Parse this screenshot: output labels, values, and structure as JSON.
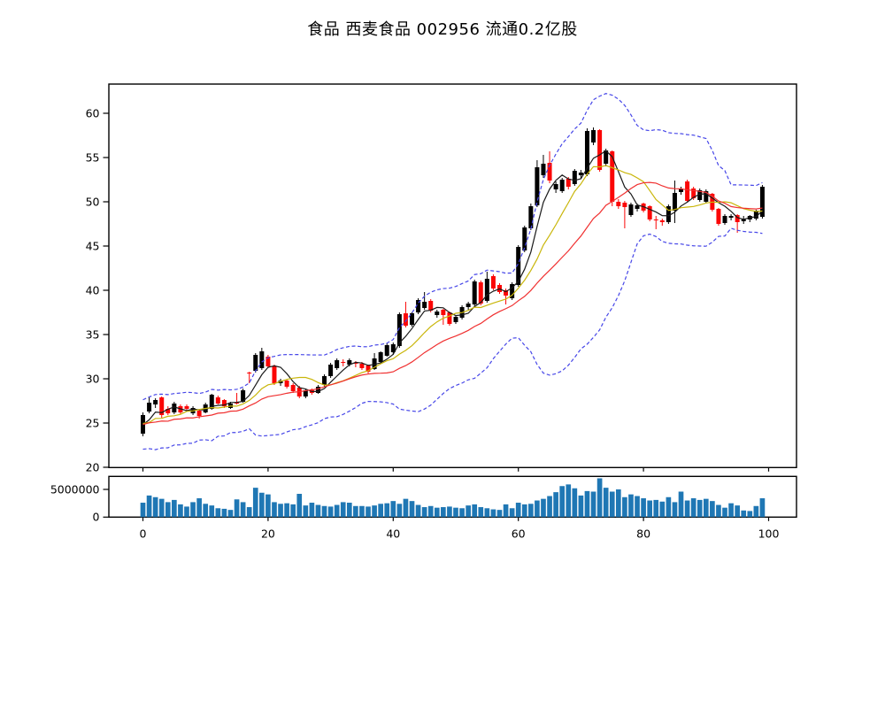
{
  "title": "食品 西麦食品 002956 流通0.2亿股",
  "chart_data": [
    {
      "type": "candlestick",
      "title": "食品 西麦食品 002956 流通0.2亿股",
      "xlabel": "",
      "ylabel": "",
      "xlim": [
        -5.4,
        104.5
      ],
      "ylim": [
        20,
        63.3
      ],
      "yticks": [
        20,
        25,
        30,
        35,
        40,
        45,
        50,
        55,
        60
      ],
      "xticks": [
        0,
        20,
        40,
        60,
        80,
        100
      ],
      "grid": false,
      "colors": {
        "up": "#000000",
        "down": "#fb0606",
        "ma_fast": "#1a1a1a",
        "ma_mid": "#c9b60a",
        "ma_slow": "#f03030",
        "band": "#4646e8"
      },
      "overlays": [
        {
          "name": "ma5",
          "type": "sma",
          "window": 5,
          "style": "solid",
          "color": "#1a1a1a"
        },
        {
          "name": "ma10",
          "type": "sma",
          "window": 10,
          "style": "solid",
          "color": "#c9b60a"
        },
        {
          "name": "ma20",
          "type": "sma",
          "window": 20,
          "style": "solid",
          "color": "#f03030"
        },
        {
          "name": "boll-upper",
          "type": "bollinger_upper",
          "window": 20,
          "k": 2,
          "style": "dashed",
          "color": "#4646e8"
        },
        {
          "name": "boll-lower",
          "type": "bollinger_lower",
          "window": 20,
          "k": 2,
          "style": "dashed",
          "color": "#4646e8"
        }
      ],
      "warmup_closes": [
        22.5,
        23.5,
        26.0,
        23.5,
        26.5,
        22.8,
        25.5,
        24.0,
        27.0,
        23.2,
        25.2,
        26.2,
        23.0,
        25.8,
        23.8,
        26.6,
        24.6,
        23.2,
        26.2,
        24.2
      ],
      "ohlc": [
        [
          23.8,
          26.2,
          23.5,
          25.9
        ],
        [
          26.3,
          27.9,
          26.1,
          27.3
        ],
        [
          27.1,
          27.8,
          26.7,
          27.6
        ],
        [
          27.9,
          28.0,
          25.6,
          25.9
        ],
        [
          26.6,
          26.9,
          25.9,
          26.1
        ],
        [
          26.2,
          27.4,
          26.0,
          27.2
        ],
        [
          26.9,
          27.1,
          26.0,
          26.2
        ],
        [
          26.9,
          27.1,
          26.3,
          26.6
        ],
        [
          26.1,
          26.9,
          25.9,
          26.7
        ],
        [
          26.4,
          26.6,
          25.5,
          25.8
        ],
        [
          26.2,
          27.3,
          26.1,
          27.1
        ],
        [
          26.6,
          28.3,
          26.5,
          28.2
        ],
        [
          27.9,
          28.1,
          27.1,
          27.2
        ],
        [
          27.6,
          27.7,
          26.7,
          26.9
        ],
        [
          26.7,
          27.4,
          26.6,
          27.2
        ],
        [
          27.3,
          28.4,
          27.1,
          27.2
        ],
        [
          27.4,
          28.9,
          27.3,
          28.7
        ],
        [
          30.7,
          30.8,
          29.5,
          30.6
        ],
        [
          30.9,
          32.9,
          30.7,
          32.7
        ],
        [
          31.2,
          33.5,
          31.0,
          33.1
        ],
        [
          32.5,
          32.7,
          31.2,
          31.4
        ],
        [
          31.4,
          31.6,
          29.3,
          29.5
        ],
        [
          29.5,
          30.0,
          29.2,
          29.8
        ],
        [
          29.8,
          29.9,
          28.9,
          29.1
        ],
        [
          29.3,
          29.5,
          28.4,
          28.6
        ],
        [
          29.0,
          29.2,
          27.8,
          28.0
        ],
        [
          28.0,
          28.9,
          27.8,
          28.7
        ],
        [
          28.8,
          28.9,
          28.2,
          28.4
        ],
        [
          28.4,
          29.3,
          28.3,
          29.1
        ],
        [
          29.3,
          30.5,
          29.1,
          30.3
        ],
        [
          30.3,
          31.8,
          30.1,
          31.6
        ],
        [
          31.2,
          32.3,
          31.0,
          32.1
        ],
        [
          31.9,
          32.2,
          31.4,
          31.8
        ],
        [
          31.6,
          32.3,
          31.4,
          32.1
        ],
        [
          31.8,
          32.0,
          31.3,
          31.7
        ],
        [
          31.7,
          31.9,
          31.0,
          31.2
        ],
        [
          31.5,
          31.6,
          30.6,
          30.8
        ],
        [
          31.1,
          32.9,
          31.0,
          32.3
        ],
        [
          31.9,
          33.1,
          31.7,
          33.0
        ],
        [
          32.6,
          34.0,
          32.5,
          33.8
        ],
        [
          33.0,
          34.1,
          32.7,
          33.9
        ],
        [
          33.7,
          37.5,
          33.5,
          37.3
        ],
        [
          37.4,
          38.7,
          35.8,
          36.0
        ],
        [
          36.1,
          37.5,
          35.9,
          37.4
        ],
        [
          37.5,
          39.1,
          37.3,
          38.9
        ],
        [
          38.0,
          39.8,
          37.8,
          38.7
        ],
        [
          38.8,
          39.0,
          37.5,
          37.7
        ],
        [
          37.2,
          37.8,
          36.9,
          37.6
        ],
        [
          37.8,
          37.9,
          36.1,
          37.2
        ],
        [
          37.5,
          37.6,
          36.0,
          36.2
        ],
        [
          36.4,
          37.1,
          36.2,
          37.0
        ],
        [
          36.9,
          38.3,
          36.7,
          38.1
        ],
        [
          38.1,
          38.7,
          37.8,
          38.5
        ],
        [
          38.4,
          41.2,
          38.2,
          41.0
        ],
        [
          40.9,
          41.1,
          38.3,
          38.5
        ],
        [
          38.8,
          42.1,
          38.6,
          41.3
        ],
        [
          41.6,
          41.8,
          40.0,
          40.2
        ],
        [
          40.6,
          40.8,
          39.6,
          39.8
        ],
        [
          40.0,
          40.2,
          38.4,
          39.4
        ],
        [
          39.1,
          40.9,
          38.9,
          40.7
        ],
        [
          40.6,
          45.1,
          40.4,
          44.9
        ],
        [
          44.5,
          47.3,
          44.3,
          47.1
        ],
        [
          47.0,
          49.8,
          46.8,
          49.5
        ],
        [
          49.6,
          54.7,
          49.4,
          53.9
        ],
        [
          53.0,
          55.3,
          52.7,
          54.3
        ],
        [
          54.4,
          55.7,
          52.1,
          52.4
        ],
        [
          51.4,
          52.3,
          51.0,
          52.0
        ],
        [
          51.2,
          52.7,
          51.0,
          52.5
        ],
        [
          52.6,
          52.8,
          51.4,
          51.7
        ],
        [
          52.0,
          53.7,
          51.8,
          53.5
        ],
        [
          53.0,
          53.6,
          52.6,
          53.3
        ],
        [
          53.1,
          58.3,
          52.9,
          58.0
        ],
        [
          56.7,
          58.4,
          56.4,
          58.1
        ],
        [
          58.1,
          58.2,
          53.4,
          53.6
        ],
        [
          54.3,
          56.0,
          54.0,
          55.8
        ],
        [
          55.7,
          55.8,
          49.5,
          50.0
        ],
        [
          50.0,
          50.3,
          49.2,
          49.5
        ],
        [
          49.9,
          50.1,
          47.0,
          49.4
        ],
        [
          48.5,
          49.9,
          48.3,
          49.7
        ],
        [
          49.2,
          49.8,
          48.9,
          49.6
        ],
        [
          49.8,
          49.9,
          48.8,
          49.0
        ],
        [
          49.5,
          49.6,
          47.8,
          48.0
        ],
        [
          48.0,
          48.4,
          46.9,
          47.9
        ],
        [
          47.9,
          48.1,
          47.3,
          47.7
        ],
        [
          47.7,
          49.7,
          47.5,
          49.5
        ],
        [
          49.0,
          52.4,
          47.6,
          51.0
        ],
        [
          51.1,
          51.7,
          50.8,
          51.5
        ],
        [
          52.3,
          52.5,
          49.9,
          50.1
        ],
        [
          51.5,
          51.7,
          50.2,
          50.4
        ],
        [
          50.2,
          51.5,
          50.0,
          51.3
        ],
        [
          50.0,
          51.4,
          49.8,
          51.2
        ],
        [
          50.9,
          51.0,
          48.9,
          49.1
        ],
        [
          49.2,
          49.3,
          47.3,
          47.5
        ],
        [
          47.6,
          48.6,
          47.4,
          48.4
        ],
        [
          48.2,
          48.6,
          47.9,
          48.4
        ],
        [
          48.5,
          48.6,
          46.5,
          47.7
        ],
        [
          47.8,
          48.4,
          47.5,
          48.1
        ],
        [
          48.0,
          48.5,
          47.7,
          48.4
        ],
        [
          48.1,
          49.1,
          47.9,
          49.0
        ],
        [
          48.3,
          51.9,
          48.1,
          51.7
        ]
      ]
    },
    {
      "type": "bar",
      "name": "volume",
      "ylabel": "",
      "ylim": [
        0,
        7420000
      ],
      "yticks": [
        0,
        5000000
      ],
      "xticks": [
        0,
        20,
        40,
        60,
        80,
        100
      ],
      "color": "#1f77b4",
      "values": [
        2600000,
        3900000,
        3600000,
        3300000,
        2700000,
        3100000,
        2300000,
        1900000,
        2700000,
        3400000,
        2400000,
        2100000,
        1600000,
        1500000,
        1300000,
        3200000,
        2700000,
        1800000,
        5300000,
        4400000,
        4100000,
        2700000,
        2400000,
        2500000,
        2300000,
        4200000,
        2100000,
        2600000,
        2200000,
        2000000,
        1900000,
        2200000,
        2700000,
        2600000,
        2000000,
        2000000,
        1900000,
        2100000,
        2400000,
        2500000,
        2900000,
        2400000,
        3300000,
        2900000,
        2200000,
        1800000,
        2000000,
        1700000,
        1800000,
        1900000,
        1700000,
        1600000,
        2100000,
        2300000,
        1800000,
        1600000,
        1400000,
        1300000,
        2300000,
        1600000,
        2600000,
        2300000,
        2400000,
        3000000,
        3300000,
        3800000,
        4500000,
        5600000,
        5900000,
        5200000,
        3900000,
        4700000,
        4600000,
        7000000,
        5300000,
        4600000,
        5000000,
        3600000,
        4100000,
        3800000,
        3400000,
        3000000,
        3100000,
        2800000,
        3600000,
        2700000,
        4600000,
        3000000,
        3400000,
        3100000,
        3300000,
        2900000,
        2200000,
        1700000,
        2500000,
        2100000,
        1200000,
        1100000,
        2000000,
        3400000
      ]
    }
  ]
}
